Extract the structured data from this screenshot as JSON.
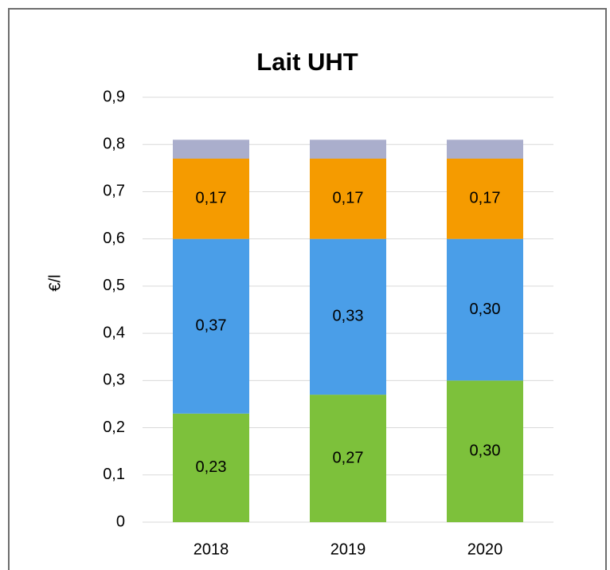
{
  "chart_data": {
    "type": "stacked_bar",
    "title": "Lait UHT",
    "y_label": "€/l",
    "categories": [
      "2018",
      "2019",
      "2020"
    ],
    "series": [
      {
        "color": "#7dc13b",
        "values": [
          0.23,
          0.27,
          0.3
        ],
        "value_labels": [
          "0,23",
          "0,27",
          "0,30"
        ]
      },
      {
        "color": "#4a9ee8",
        "values": [
          0.37,
          0.33,
          0.3
        ],
        "value_labels": [
          "0,37",
          "0,33",
          "0,30"
        ]
      },
      {
        "color": "#f59b00",
        "values": [
          0.17,
          0.17,
          0.17
        ],
        "value_labels": [
          "0,17",
          "0,17",
          "0,17"
        ]
      },
      {
        "color": "#aaaecc",
        "values": [
          0.04,
          0.04,
          0.04
        ]
      }
    ],
    "ylim": [
      0,
      0.9
    ],
    "yticks": [
      0,
      {
        "value": 0.1,
        "label": "0,1"
      },
      {
        "value": 0.2,
        "label": "0,2"
      },
      {
        "value": 0.3,
        "label": "0,3"
      },
      {
        "value": 0.4,
        "label": "0,4"
      },
      {
        "value": 0.5,
        "label": "0,5"
      },
      {
        "value": 0.6,
        "label": "0,6"
      },
      {
        "value": 0.7,
        "label": "0,7"
      },
      {
        "value": 0.8,
        "label": "0,8"
      },
      {
        "value": 0.9,
        "label": "0,9"
      }
    ],
    "grid": true
  }
}
